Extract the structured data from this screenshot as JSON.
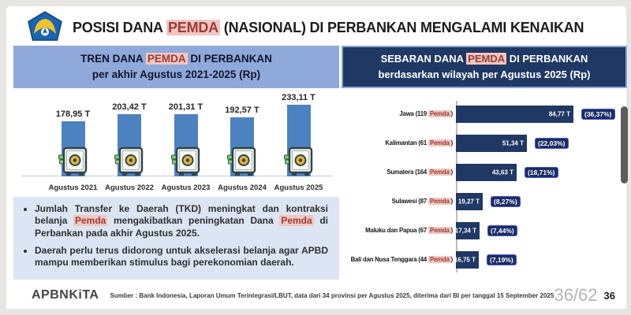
{
  "header": {
    "title_segments": [
      {
        "t": "POSISI DANA "
      },
      {
        "t": "PEMDA",
        "hl": true
      },
      {
        "t": " (NASIONAL) DI PERBANKAN MENGALAMI KENAIKAN"
      }
    ]
  },
  "left_panel": {
    "header_line1_segments": [
      {
        "t": "TREN DANA "
      },
      {
        "t": "PEMDA",
        "hl": true
      },
      {
        "t": " DI PERBANKAN"
      }
    ],
    "header_line2": "per akhir Agustus 2021-2025 (Rp)",
    "notes": [
      [
        {
          "t": "Jumlah Transfer ke Daerah (TKD) meningkat dan kontraksi belanja "
        },
        {
          "t": "Pemda",
          "hl": true
        },
        {
          "t": " mengakibatkan peningkatan Dana "
        },
        {
          "t": "Pemda",
          "hl": true
        },
        {
          "t": " di Perbankan pada akhir Agustus 2025."
        }
      ],
      [
        {
          "t": "Daerah perlu terus didorong untuk akselerasi belanja agar APBD mampu memberikan stimulus bagi perekonomian daerah."
        }
      ]
    ]
  },
  "right_panel": {
    "header_line1_segments": [
      {
        "t": "SEBARAN DANA "
      },
      {
        "t": "PEMDA",
        "hl": true
      },
      {
        "t": " DI PERBANKAN"
      }
    ],
    "header_line2": "berdasarkan wilayah per Agustus 2025 (Rp)",
    "pemda_word": "Pemda"
  },
  "chart_data": [
    {
      "type": "bar",
      "title": "TREN DANA PEMDA DI PERBANKAN per akhir Agustus 2021-2025 (Rp)",
      "categories": [
        "Agustus 2021",
        "Agustus 2022",
        "Agustus 2023",
        "Agustus 2024",
        "Agustus 2025"
      ],
      "values": [
        178.95,
        203.42,
        201.31,
        192.57,
        233.11
      ],
      "value_labels": [
        "178,95 T",
        "203,42 T",
        "201,31 T",
        "192,57 T",
        "233,11 T"
      ],
      "unit": "triliun Rp",
      "bar_color": "#4d82c0",
      "ylim": [
        0,
        240
      ],
      "grid": false,
      "legend": false
    },
    {
      "type": "bar",
      "orientation": "horizontal",
      "title": "SEBARAN DANA PEMDA DI PERBANKAN berdasarkan wilayah per Agustus 2025 (Rp)",
      "categories": [
        "Jawa (119 Pemda)",
        "Kalimantan (61 Pemda)",
        "Sumatera (164 Pemda)",
        "Sulawesi (87 Pemda)",
        "Maluku dan Papua (67 Pemda)",
        "Bali dan Nusa Tenggara (44 Pemda)"
      ],
      "regions": [
        {
          "name": "Jawa",
          "count": "119"
        },
        {
          "name": "Kalimantan",
          "count": "61"
        },
        {
          "name": "Sumatera",
          "count": "164"
        },
        {
          "name": "Sulawesi",
          "count": "87"
        },
        {
          "name": "Maluku dan Papua",
          "count": "67"
        },
        {
          "name": "Bali dan Nusa Tenggara",
          "count": "44"
        }
      ],
      "values": [
        84.77,
        51.34,
        43.63,
        19.27,
        17.34,
        16.75
      ],
      "value_labels": [
        "84,77 T",
        "51,34 T",
        "43,63 T",
        "19,27 T",
        "17,34 T",
        "16,75 T"
      ],
      "pct_labels": [
        "(36,37%)",
        "(22,03%)",
        "(18,71%)",
        "(8,27%)",
        "(7,44%)",
        "(7,19%)"
      ],
      "unit": "triliun Rp",
      "bar_color": "#1f3864",
      "grid": false,
      "legend": false
    }
  ],
  "footer": {
    "brand": "APBNKiTA",
    "source": "Sumber : Bank Indonesia, Laporan Umum Terintegrasi/LBUT, data dari 34 provinsi per Agustus 2025, diterima dari BI per tanggal 15 September 2025",
    "slide_counter": "36/62",
    "page_number": "36"
  },
  "colors": {
    "header_light_blue": "#8ea9da",
    "header_navy": "#1f3864",
    "bar_blue": "#4d82c0",
    "bar_navy": "#1f3864",
    "highlight_bg": "#f1c7c2",
    "highlight_text": "#9c3b36",
    "notes_bg": "#dbe5f4",
    "pct_badge_border": "#4355c4"
  }
}
